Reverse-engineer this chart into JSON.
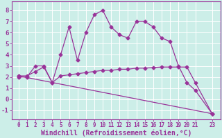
{
  "background_color": "#cceee8",
  "grid_color": "#ffffff",
  "line_color": "#993399",
  "xlabel": "Windchill (Refroidissement éolien,°C)",
  "xlabel_fontsize": 7,
  "ylim": [
    -1.8,
    8.8
  ],
  "xlim": [
    -0.8,
    24.0
  ],
  "yticks": [
    -1,
    0,
    1,
    2,
    3,
    4,
    5,
    6,
    7,
    8
  ],
  "xticks": [
    0,
    1,
    2,
    3,
    4,
    5,
    6,
    7,
    8,
    9,
    10,
    11,
    12,
    13,
    14,
    15,
    16,
    17,
    18,
    19,
    20,
    21,
    23
  ],
  "xtick_labels": [
    "0",
    "1",
    "2",
    "3",
    "4",
    "5",
    "6",
    "7",
    "8",
    "9",
    "10",
    "11",
    "12",
    "13",
    "14",
    "15",
    "16",
    "17",
    "18",
    "19",
    "20",
    "21",
    "23"
  ],
  "line1_x": [
    0,
    1,
    2,
    3,
    4,
    5,
    6,
    7,
    8,
    9,
    10,
    11,
    12,
    13,
    14,
    15,
    16,
    17,
    18,
    19,
    20,
    21,
    23
  ],
  "line1_y": [
    2.0,
    2.0,
    3.0,
    3.0,
    1.5,
    4.0,
    6.5,
    3.5,
    6.0,
    7.6,
    8.0,
    6.5,
    5.8,
    5.5,
    7.0,
    7.0,
    6.5,
    5.5,
    5.2,
    3.0,
    1.5,
    0.8,
    -1.3
  ],
  "line2_x": [
    0,
    1,
    2,
    3,
    4,
    5,
    6,
    7,
    8,
    9,
    10,
    11,
    12,
    13,
    14,
    15,
    16,
    17,
    18,
    19,
    20,
    21,
    23
  ],
  "line2_y": [
    2.1,
    2.1,
    2.5,
    2.9,
    1.5,
    2.1,
    2.2,
    2.3,
    2.4,
    2.5,
    2.6,
    2.6,
    2.7,
    2.7,
    2.8,
    2.8,
    2.85,
    2.9,
    2.9,
    2.9,
    2.9,
    1.5,
    -1.3
  ],
  "line3_x": [
    0,
    23
  ],
  "line3_y": [
    2.1,
    -1.3
  ],
  "marker": "D",
  "markersize": 2.5,
  "linewidth": 0.9,
  "tick_fontsize": 5.5,
  "ytick_fontsize": 6.5
}
